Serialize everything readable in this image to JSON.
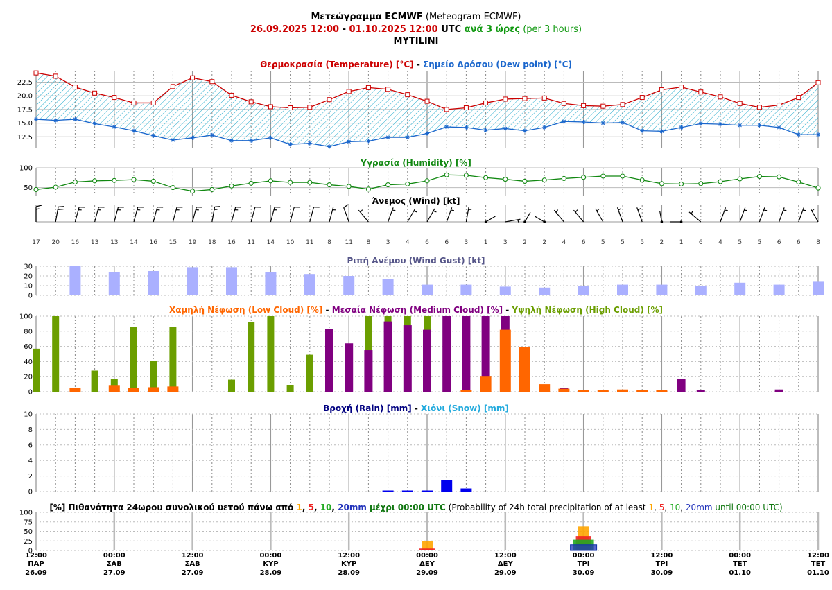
{
  "header": {
    "title_bold": "Μετεώγραμμα ECMWF",
    "title_normal": " (Meteogram ECMWF)",
    "range_from": "26.09.2025 12:00",
    "range_sep": " - ",
    "range_to": "01.10.2025 12:00",
    "range_utc": " UTC ",
    "range_step_bold": "ανά 3 ώρες",
    "range_step_normal": " (per 3 hours)",
    "location": "MYTILINI"
  },
  "colors": {
    "temperature": "#cc0000",
    "dewpoint": "#1a66cc",
    "fill_hatch": "#22aacc",
    "humidity": "#118811",
    "wind": "#000000",
    "gust": "#aab0ff",
    "gust_title": "#555588",
    "low_cloud": "#ff6600",
    "medium_cloud": "#800080",
    "high_cloud": "#6b9e00",
    "rain": "#0000ee",
    "rain_title": "#000080",
    "snow": "#22aadd",
    "p1": "#ffa500",
    "p5": "#ee2222",
    "p10": "#22aa22",
    "p20": "#2233bb"
  },
  "x_axis": {
    "ticks": [
      {
        "time": "12:00",
        "day": "ΠΑΡ",
        "date": "26.09"
      },
      {
        "time": "00:00",
        "day": "ΣΑΒ",
        "date": "27.09"
      },
      {
        "time": "12:00",
        "day": "ΣΑΒ",
        "date": "27.09"
      },
      {
        "time": "00:00",
        "day": "ΚΥΡ",
        "date": "28.09"
      },
      {
        "time": "12:00",
        "day": "ΚΥΡ",
        "date": "28.09"
      },
      {
        "time": "00:00",
        "day": "ΔΕΥ",
        "date": "29.09"
      },
      {
        "time": "12:00",
        "day": "ΔΕΥ",
        "date": "29.09"
      },
      {
        "time": "00:00",
        "day": "ΤΡΙ",
        "date": "30.09"
      },
      {
        "time": "12:00",
        "day": "ΤΡΙ",
        "date": "30.09"
      },
      {
        "time": "00:00",
        "day": "ΤΕΤ",
        "date": "01.10"
      },
      {
        "time": "12:00",
        "day": "ΤΕΤ",
        "date": "01.10"
      }
    ]
  },
  "panels": {
    "temp": {
      "title_a": "Θερμοκρασία (Temperature) [°C]",
      "sep": " - ",
      "title_b": "Σημείο Δρόσου (Dew point) [°C]",
      "yticks": [
        "22.5",
        "20.0",
        "17.5",
        "15.0",
        "12.5"
      ]
    },
    "humidity": {
      "title": "Υγρασία (Humidity) [%]",
      "yticks": [
        "100",
        "50"
      ]
    },
    "wind": {
      "title": "Άνεμος (Wind) [kt]"
    },
    "gust": {
      "title": "Ριπή Ανέμου (Wind Gust) [kt]",
      "yticks": [
        "30",
        "20",
        "10",
        "0"
      ]
    },
    "cloud": {
      "title_low": "Χαμηλή Νέφωση (Low Cloud) [%]",
      "sep1": " - ",
      "title_med": "Μεσαία Νέφωση (Medium Cloud) [%]",
      "sep2": " - ",
      "title_high": "Υψηλή Νέφωση (High Cloud) [%]",
      "yticks": [
        "100",
        "80",
        "60",
        "40",
        "20",
        "0"
      ]
    },
    "rain": {
      "title_a": "Βροχή (Rain) [mm]",
      "sep": " - ",
      "title_b": "Χιόνι (Snow) [mm]",
      "yticks": [
        "10",
        "8",
        "6",
        "4",
        "2",
        "0"
      ]
    },
    "prob": {
      "t_a": "[%] Πιθανότητα 24ωρου συνολικού υετού πάνω από ",
      "t_1": "1",
      "t_c1": ", ",
      "t_5": "5",
      "t_c2": ", ",
      "t_10": "10",
      "t_c3": ", ",
      "t_20": "20mm",
      "t_until": " μέχρι 00:00 UTC",
      "t_en_a": " (Probability of 24h total precipitation of at least ",
      "t_en_1": "1",
      "t_en_c1": ", ",
      "t_en_5": "5",
      "t_en_c2": ", ",
      "t_en_10": "10",
      "t_en_c3": ", ",
      "t_en_20": "20mm",
      "t_en_until": " until 00:00 UTC)",
      "yticks": [
        "100",
        "75",
        "50",
        "25",
        "0"
      ]
    }
  },
  "chart_data": [
    {
      "type": "line",
      "title": "Θερμοκρασία (Temperature) [°C] - Σημείο Δρόσου (Dew point) [°C]",
      "x_note": "3-hourly steps from 26.09.2025 12:00 to 01.10.2025 12:00 UTC",
      "ylim": [
        10.5,
        24.6
      ],
      "series": [
        {
          "name": "Θερμοκρασία (Temperature) [°C]",
          "values": [
            24.2,
            23.6,
            21.6,
            20.5,
            19.7,
            18.7,
            18.7,
            21.7,
            23.3,
            22.6,
            20.1,
            18.9,
            18.0,
            17.8,
            17.9,
            19.3,
            20.8,
            21.5,
            21.2,
            20.2,
            19.0,
            17.5,
            17.8,
            18.7,
            19.4,
            19.5,
            19.6,
            18.6,
            18.2,
            18.1,
            18.4,
            19.7,
            21.1,
            21.6,
            20.7,
            19.8,
            18.6,
            17.9,
            18.3,
            19.7,
            22.4
          ]
        },
        {
          "name": "Σημείο Δρόσου (Dew point) [°C]",
          "values": [
            15.7,
            15.5,
            15.7,
            14.9,
            14.3,
            13.6,
            12.7,
            11.9,
            12.3,
            12.8,
            11.8,
            11.8,
            12.3,
            11.1,
            11.3,
            10.7,
            11.6,
            11.7,
            12.4,
            12.4,
            13.1,
            14.3,
            14.2,
            13.7,
            14.0,
            13.6,
            14.2,
            15.3,
            15.2,
            15.0,
            15.1,
            13.6,
            13.5,
            14.2,
            14.9,
            14.8,
            14.6,
            14.6,
            14.2,
            12.9,
            12.9
          ]
        }
      ]
    },
    {
      "type": "line",
      "title": "Υγρασία (Humidity) [%]",
      "ylim": [
        30,
        100
      ],
      "series": [
        {
          "name": "Υγρασία (Humidity) [%]",
          "values": [
            45,
            51,
            64,
            67,
            68,
            70,
            66,
            50,
            41,
            45,
            54,
            61,
            67,
            63,
            63,
            57,
            53,
            46,
            57,
            59,
            67,
            82,
            81,
            75,
            71,
            66,
            69,
            73,
            76,
            79,
            79,
            69,
            60,
            59,
            60,
            65,
            72,
            78,
            77,
            64,
            49
          ]
        }
      ]
    },
    {
      "type": "scatter",
      "title": "Άνεμος (Wind) [kt]",
      "series": [
        {
          "name": "speed_kt",
          "values": [
            17,
            20,
            16,
            13,
            13,
            14,
            16,
            15,
            19,
            18,
            16,
            11,
            14,
            10,
            11,
            8,
            11,
            8,
            3,
            4,
            6,
            6,
            3,
            1,
            3,
            2,
            2,
            4,
            6,
            5,
            5,
            5,
            2,
            1,
            6,
            4,
            5,
            5,
            6,
            6,
            8
          ]
        },
        {
          "name": "direction_deg",
          "values": [
            0,
            10,
            15,
            15,
            15,
            15,
            15,
            15,
            15,
            10,
            15,
            15,
            15,
            15,
            15,
            15,
            340,
            320,
            20,
            30,
            30,
            20,
            10,
            60,
            80,
            30,
            300,
            320,
            320,
            330,
            340,
            340,
            350,
            270,
            310,
            20,
            20,
            20,
            20,
            20,
            330
          ]
        }
      ]
    },
    {
      "type": "bar",
      "title": "Ριπή Ανέμου (Wind Gust) [kt]",
      "ylim": [
        0,
        30
      ],
      "series": [
        {
          "name": "Ριπή Ανέμου (Wind Gust) [kt]",
          "values": [
            30,
            24,
            25,
            29,
            29,
            24,
            22,
            20,
            17,
            11,
            11,
            9,
            8,
            10,
            11,
            11,
            10,
            13,
            11,
            14
          ]
        }
      ]
    },
    {
      "type": "bar",
      "title": "Χαμηλή Νέφωση (Low Cloud) [%] - Μεσαία Νέφωση (Medium Cloud) [%] - Υψηλή Νέφωση (High Cloud) [%]",
      "ylim": [
        0,
        100
      ],
      "series": [
        {
          "name": "Χαμηλή Νέφωση (Low Cloud) [%]",
          "values": [
            0,
            0,
            5,
            0,
            8,
            5,
            6,
            7,
            0,
            0,
            0,
            0,
            0,
            0,
            0,
            0,
            0,
            0,
            0,
            0,
            0,
            0,
            2,
            20,
            82,
            59,
            10,
            4,
            2,
            2,
            3,
            2,
            2,
            0,
            0,
            0,
            0,
            0,
            0,
            0,
            0
          ]
        },
        {
          "name": "Μεσαία Νέφωση (Medium Cloud) [%]",
          "values": [
            0,
            0,
            0,
            0,
            0,
            0,
            0,
            0,
            0,
            0,
            0,
            0,
            0,
            0,
            0,
            83,
            64,
            55,
            93,
            88,
            82,
            100,
            100,
            100,
            100,
            0,
            0,
            5,
            0,
            0,
            0,
            0,
            0,
            17,
            2,
            0,
            0,
            0,
            3,
            0,
            0
          ]
        },
        {
          "name": "Υψηλή Νέφωση (High Cloud) [%]",
          "values": [
            57,
            100,
            0,
            28,
            17,
            86,
            41,
            86,
            0,
            0,
            16,
            92,
            100,
            9,
            49,
            0,
            0,
            100,
            100,
            100,
            100,
            0,
            0,
            0,
            0,
            0,
            0,
            0,
            0,
            0,
            0,
            0,
            0,
            0,
            0,
            0,
            0,
            0,
            0,
            0,
            0
          ]
        }
      ]
    },
    {
      "type": "bar",
      "title": "Βροχή (Rain) [mm] - Χιόνι (Snow) [mm]",
      "ylim": [
        0,
        10
      ],
      "series": [
        {
          "name": "Βροχή (Rain) [mm]",
          "values": [
            0,
            0,
            0,
            0,
            0,
            0,
            0,
            0,
            0,
            0,
            0,
            0,
            0,
            0,
            0,
            0,
            0,
            0,
            0.1,
            0.1,
            0.1,
            1.5,
            0.4,
            0,
            0,
            0,
            0,
            0,
            0,
            0,
            0,
            0,
            0,
            0,
            0,
            0,
            0,
            0,
            0,
            0,
            0
          ]
        },
        {
          "name": "Χιόνι (Snow) [mm]",
          "values": [
            0,
            0,
            0,
            0,
            0,
            0,
            0,
            0,
            0,
            0,
            0,
            0,
            0,
            0,
            0,
            0,
            0,
            0,
            0,
            0,
            0,
            0,
            0,
            0,
            0,
            0,
            0,
            0,
            0,
            0,
            0,
            0,
            0,
            0,
            0,
            0,
            0,
            0,
            0,
            0,
            0
          ]
        }
      ]
    },
    {
      "type": "bar",
      "title": "[%] Πιθανότητα 24ωρου συνολικού υετού",
      "ylim": [
        0,
        100
      ],
      "categories": [
        "27.09",
        "28.09",
        "29.09",
        "30.09",
        "01.10"
      ],
      "series": [
        {
          "name": "1",
          "values": [
            0,
            0,
            25,
            63,
            0
          ]
        },
        {
          "name": "5",
          "values": [
            0,
            0,
            5,
            38,
            0
          ]
        },
        {
          "name": "10",
          "values": [
            0,
            0,
            0,
            28,
            0
          ]
        },
        {
          "name": "20mm",
          "values": [
            0,
            0,
            0,
            15,
            0
          ]
        }
      ]
    }
  ]
}
